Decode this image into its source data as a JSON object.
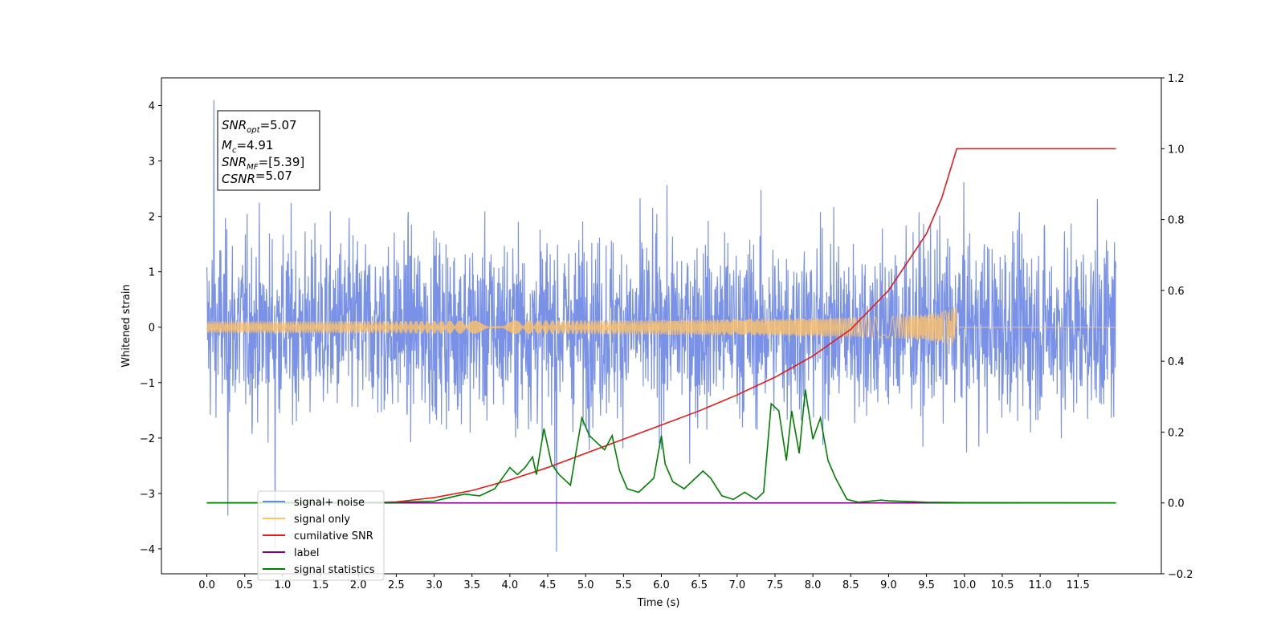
{
  "chart_data": {
    "type": "line",
    "xlabel": "Time (s)",
    "ylabel": "Whitened strain",
    "xlim": [
      -0.6,
      12.6
    ],
    "ylim": [
      -4.45,
      4.5
    ],
    "y2lim": [
      -0.2,
      1.2
    ],
    "x_ticks": [
      "0.0",
      "0.5",
      "1.0",
      "1.5",
      "2.0",
      "2.5",
      "3.0",
      "3.5",
      "4.0",
      "4.5",
      "5.0",
      "5.5",
      "6.0",
      "6.5",
      "7.0",
      "7.5",
      "8.0",
      "8.5",
      "9.0",
      "9.5",
      "10.0",
      "10.5",
      "11.0",
      "11.5"
    ],
    "y_ticks": [
      "4",
      "3",
      "2",
      "1",
      "0",
      "−1",
      "−2",
      "−3",
      "−4"
    ],
    "y2_ticks": [
      "1.2",
      "1.0",
      "0.8",
      "0.6",
      "0.4",
      "0.2",
      "0.0",
      "−0.2"
    ],
    "grid": false,
    "legend_position": "lower-left",
    "annotation_lines": [
      {
        "label": "SNR",
        "sub": "opt",
        "value": "=5.07"
      },
      {
        "label": "M",
        "sub": "c",
        "value": "=4.91"
      },
      {
        "label": "SNR",
        "sub": "MF",
        "value": "=[5.39]"
      },
      {
        "label": "CSNR",
        "sub": "",
        "value": "=5.07"
      }
    ],
    "series": [
      {
        "name": "signal+ noise",
        "color": "#6a86e6",
        "axis": "left",
        "kind": "noise",
        "x_range": [
          0,
          12
        ],
        "envelope": [
          -2.5,
          2.5
        ],
        "peaks": [
          4.1,
          -4.05
        ]
      },
      {
        "name": "signal only",
        "color": "#ffc266",
        "axis": "left",
        "kind": "chirp",
        "x_range": [
          0,
          9.9
        ],
        "peak_amplitude": 0.5
      },
      {
        "name": "cumilative SNR",
        "color": "#e41a1c",
        "axis": "right",
        "x": [
          0,
          1,
          2,
          2.5,
          3,
          3.5,
          4,
          4.5,
          5,
          5.5,
          6,
          6.5,
          7,
          7.5,
          8,
          8.5,
          9,
          9.5,
          9.7,
          9.9,
          10,
          11,
          12
        ],
        "y": [
          0,
          0,
          0,
          0.003,
          0.015,
          0.035,
          0.065,
          0.1,
          0.14,
          0.18,
          0.22,
          0.26,
          0.305,
          0.355,
          0.415,
          0.49,
          0.6,
          0.76,
          0.86,
          1.0,
          1.0,
          1.0,
          1.0
        ]
      },
      {
        "name": "label",
        "color": "#800080",
        "axis": "right",
        "x": [
          0,
          12
        ],
        "y": [
          0,
          0
        ]
      },
      {
        "name": "signal statistics",
        "color": "#008000",
        "axis": "right",
        "x": [
          0,
          2.5,
          3.0,
          3.2,
          3.4,
          3.6,
          3.8,
          3.9,
          4.0,
          4.1,
          4.2,
          4.3,
          4.35,
          4.45,
          4.55,
          4.65,
          4.8,
          4.95,
          5.05,
          5.15,
          5.25,
          5.35,
          5.45,
          5.55,
          5.7,
          5.8,
          5.9,
          6.0,
          6.05,
          6.15,
          6.3,
          6.4,
          6.55,
          6.65,
          6.8,
          6.95,
          7.1,
          7.25,
          7.35,
          7.45,
          7.55,
          7.65,
          7.72,
          7.82,
          7.9,
          8.0,
          8.1,
          8.2,
          8.3,
          8.45,
          8.6,
          8.9,
          9.0,
          9.5,
          10,
          12
        ],
        "y": [
          0,
          0.002,
          0.005,
          0.015,
          0.025,
          0.02,
          0.04,
          0.07,
          0.1,
          0.08,
          0.1,
          0.13,
          0.08,
          0.21,
          0.11,
          0.08,
          0.05,
          0.24,
          0.19,
          0.17,
          0.15,
          0.19,
          0.09,
          0.04,
          0.03,
          0.05,
          0.07,
          0.19,
          0.11,
          0.06,
          0.04,
          0.06,
          0.09,
          0.07,
          0.02,
          0.01,
          0.03,
          0.01,
          0.03,
          0.28,
          0.26,
          0.12,
          0.26,
          0.14,
          0.32,
          0.18,
          0.24,
          0.12,
          0.07,
          0.01,
          0.002,
          0.008,
          0.006,
          0.002,
          0.001,
          0
        ]
      }
    ]
  }
}
